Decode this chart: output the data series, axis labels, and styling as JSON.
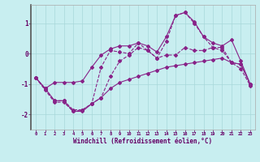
{
  "xlabel": "Windchill (Refroidissement éolien,°C)",
  "x": [
    0,
    1,
    2,
    3,
    4,
    5,
    6,
    7,
    8,
    9,
    10,
    11,
    12,
    13,
    14,
    15,
    16,
    17,
    18,
    19,
    20,
    21,
    22,
    23
  ],
  "line_volatile": [
    -0.8,
    -1.2,
    -1.6,
    -1.6,
    -1.9,
    -1.85,
    -1.65,
    -0.45,
    0.1,
    0.05,
    0.0,
    0.35,
    0.1,
    -0.15,
    0.4,
    1.25,
    1.35,
    1.0,
    0.55,
    0.2,
    0.1,
    -0.3,
    -0.5,
    -1.05
  ],
  "line_smooth": [
    -0.8,
    -1.15,
    -1.55,
    -1.55,
    -1.85,
    -1.85,
    -1.65,
    -1.45,
    -0.75,
    -0.25,
    -0.05,
    0.2,
    0.1,
    -0.15,
    -0.05,
    -0.05,
    0.2,
    0.1,
    0.1,
    0.2,
    0.2,
    -0.3,
    -0.35,
    -1.0
  ],
  "line_upper": [
    -0.8,
    -1.15,
    -0.95,
    -0.95,
    -0.95,
    -0.9,
    -0.45,
    -0.05,
    0.15,
    0.25,
    0.25,
    0.35,
    0.25,
    0.05,
    0.55,
    1.25,
    1.35,
    1.05,
    0.55,
    0.35,
    0.25,
    0.45,
    -0.25,
    -1.0
  ],
  "line_lower": [
    -0.8,
    -1.15,
    -1.55,
    -1.55,
    -1.9,
    -1.9,
    -1.65,
    -1.45,
    -1.15,
    -0.95,
    -0.85,
    -0.75,
    -0.65,
    -0.55,
    -0.45,
    -0.4,
    -0.35,
    -0.3,
    -0.25,
    -0.2,
    -0.15,
    -0.3,
    -0.35,
    -1.0
  ],
  "color": "#882288",
  "bg_color": "#c8eef0",
  "grid_color": "#a8d8da",
  "ylim": [
    -2.5,
    1.6
  ],
  "yticks": [
    -2,
    -1,
    0,
    1
  ],
  "figsize": [
    3.2,
    2.0
  ],
  "dpi": 100
}
